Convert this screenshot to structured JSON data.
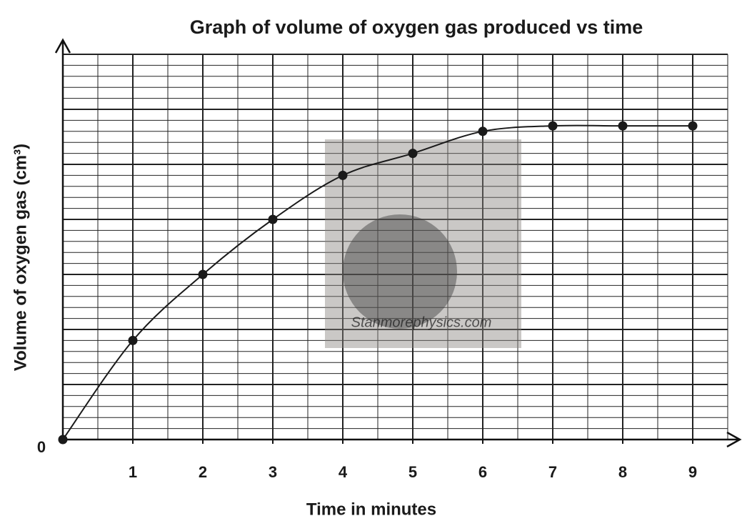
{
  "chart_data": {
    "type": "line",
    "title": "Graph of volume of oxygen gas produced vs time",
    "x_label": "Time in minutes",
    "y_label": "Volume of oxygen gas (cm³)",
    "x": [
      0,
      1,
      2,
      3,
      4,
      5,
      6,
      7,
      8,
      9
    ],
    "series": [
      {
        "color": "#1a1a1a",
        "values": [
          0,
          1.8,
          3.0,
          4.0,
          4.8,
          5.2,
          5.6,
          5.7,
          5.7,
          5.7
        ]
      }
    ],
    "xlim": [
      0,
      9.5
    ],
    "ylim": [
      0,
      7
    ],
    "xticks": [
      1,
      2,
      3,
      4,
      5,
      6,
      7,
      8,
      9
    ],
    "yticks": [
      0
    ],
    "grid": true,
    "watermark": "Stanmorephysics.com"
  }
}
